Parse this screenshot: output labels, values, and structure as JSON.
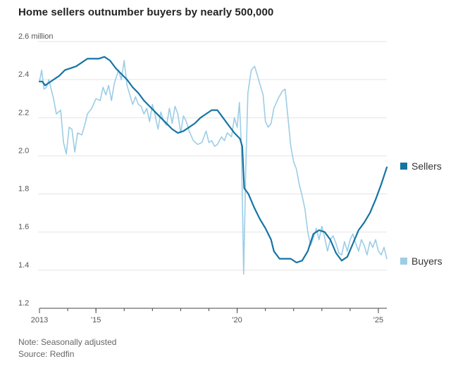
{
  "title": "Home sellers outnumber buyers by nearly 500,000",
  "note": "Note: Seasonally adjusted",
  "source": "Source: Redfin",
  "colors": {
    "sellers": "#1574a3",
    "buyers": "#9ccde6",
    "grid": "#e3e3e3",
    "axis": "#444444"
  },
  "chart_data": {
    "type": "line",
    "title": "Home sellers outnumber buyers by nearly 500,000",
    "ylabel": "million",
    "ylim": [
      1.2,
      2.6
    ],
    "xlim": [
      2013.0,
      2025.3
    ],
    "y_ticks": [
      {
        "value": 2.6,
        "label": "2.6 million"
      },
      {
        "value": 2.4,
        "label": "2.4"
      },
      {
        "value": 2.2,
        "label": "2.2"
      },
      {
        "value": 2.0,
        "label": "2.0"
      },
      {
        "value": 1.8,
        "label": "1.8"
      },
      {
        "value": 1.6,
        "label": "1.6"
      },
      {
        "value": 1.4,
        "label": "1.4"
      },
      {
        "value": 1.2,
        "label": "1.2"
      }
    ],
    "x_ticks": [
      {
        "value": 2013,
        "label": "2013"
      },
      {
        "value": 2015,
        "label": "'15"
      },
      {
        "value": 2020,
        "label": "'20"
      },
      {
        "value": 2025,
        "label": "'25"
      }
    ],
    "series": [
      {
        "name": "Sellers",
        "points": [
          [
            2013.0,
            2.39
          ],
          [
            2013.1,
            2.39
          ],
          [
            2013.2,
            2.37
          ],
          [
            2013.3,
            2.38
          ],
          [
            2013.5,
            2.4
          ],
          [
            2013.7,
            2.42
          ],
          [
            2013.9,
            2.45
          ],
          [
            2014.1,
            2.46
          ],
          [
            2014.3,
            2.47
          ],
          [
            2014.5,
            2.49
          ],
          [
            2014.7,
            2.51
          ],
          [
            2014.9,
            2.51
          ],
          [
            2015.1,
            2.51
          ],
          [
            2015.3,
            2.52
          ],
          [
            2015.5,
            2.5
          ],
          [
            2015.7,
            2.46
          ],
          [
            2015.9,
            2.43
          ],
          [
            2016.1,
            2.4
          ],
          [
            2016.3,
            2.36
          ],
          [
            2016.5,
            2.33
          ],
          [
            2016.7,
            2.29
          ],
          [
            2016.9,
            2.26
          ],
          [
            2017.1,
            2.23
          ],
          [
            2017.3,
            2.2
          ],
          [
            2017.5,
            2.17
          ],
          [
            2017.7,
            2.14
          ],
          [
            2017.9,
            2.12
          ],
          [
            2018.1,
            2.13
          ],
          [
            2018.3,
            2.15
          ],
          [
            2018.5,
            2.17
          ],
          [
            2018.7,
            2.2
          ],
          [
            2018.9,
            2.22
          ],
          [
            2019.1,
            2.24
          ],
          [
            2019.3,
            2.24
          ],
          [
            2019.5,
            2.2
          ],
          [
            2019.7,
            2.16
          ],
          [
            2019.9,
            2.12
          ],
          [
            2020.1,
            2.09
          ],
          [
            2020.18,
            2.05
          ],
          [
            2020.25,
            1.83
          ],
          [
            2020.4,
            1.8
          ],
          [
            2020.6,
            1.73
          ],
          [
            2020.8,
            1.67
          ],
          [
            2021.0,
            1.62
          ],
          [
            2021.2,
            1.56
          ],
          [
            2021.3,
            1.5
          ],
          [
            2021.5,
            1.46
          ],
          [
            2021.7,
            1.46
          ],
          [
            2021.9,
            1.46
          ],
          [
            2022.1,
            1.44
          ],
          [
            2022.3,
            1.45
          ],
          [
            2022.5,
            1.5
          ],
          [
            2022.7,
            1.59
          ],
          [
            2022.9,
            1.61
          ],
          [
            2023.1,
            1.6
          ],
          [
            2023.3,
            1.56
          ],
          [
            2023.5,
            1.49
          ],
          [
            2023.7,
            1.45
          ],
          [
            2023.9,
            1.47
          ],
          [
            2024.1,
            1.54
          ],
          [
            2024.3,
            1.61
          ],
          [
            2024.5,
            1.65
          ],
          [
            2024.7,
            1.7
          ],
          [
            2024.9,
            1.77
          ],
          [
            2025.1,
            1.85
          ],
          [
            2025.3,
            1.94
          ]
        ]
      },
      {
        "name": "Buyers",
        "points": [
          [
            2013.0,
            2.39
          ],
          [
            2013.08,
            2.45
          ],
          [
            2013.16,
            2.35
          ],
          [
            2013.25,
            2.36
          ],
          [
            2013.33,
            2.4
          ],
          [
            2013.5,
            2.3
          ],
          [
            2013.6,
            2.22
          ],
          [
            2013.75,
            2.24
          ],
          [
            2013.85,
            2.07
          ],
          [
            2013.95,
            2.01
          ],
          [
            2014.05,
            2.15
          ],
          [
            2014.15,
            2.14
          ],
          [
            2014.25,
            2.02
          ],
          [
            2014.35,
            2.12
          ],
          [
            2014.5,
            2.11
          ],
          [
            2014.6,
            2.16
          ],
          [
            2014.7,
            2.22
          ],
          [
            2014.85,
            2.25
          ],
          [
            2015.0,
            2.3
          ],
          [
            2015.15,
            2.29
          ],
          [
            2015.25,
            2.36
          ],
          [
            2015.35,
            2.32
          ],
          [
            2015.45,
            2.37
          ],
          [
            2015.55,
            2.29
          ],
          [
            2015.65,
            2.38
          ],
          [
            2015.8,
            2.45
          ],
          [
            2015.9,
            2.4
          ],
          [
            2016.0,
            2.5
          ],
          [
            2016.1,
            2.37
          ],
          [
            2016.2,
            2.32
          ],
          [
            2016.3,
            2.27
          ],
          [
            2016.4,
            2.31
          ],
          [
            2016.5,
            2.27
          ],
          [
            2016.6,
            2.26
          ],
          [
            2016.7,
            2.22
          ],
          [
            2016.8,
            2.25
          ],
          [
            2016.9,
            2.18
          ],
          [
            2017.0,
            2.27
          ],
          [
            2017.1,
            2.21
          ],
          [
            2017.2,
            2.14
          ],
          [
            2017.3,
            2.23
          ],
          [
            2017.4,
            2.18
          ],
          [
            2017.5,
            2.16
          ],
          [
            2017.6,
            2.25
          ],
          [
            2017.7,
            2.17
          ],
          [
            2017.8,
            2.26
          ],
          [
            2017.9,
            2.22
          ],
          [
            2018.0,
            2.12
          ],
          [
            2018.1,
            2.21
          ],
          [
            2018.2,
            2.18
          ],
          [
            2018.3,
            2.13
          ],
          [
            2018.45,
            2.08
          ],
          [
            2018.6,
            2.06
          ],
          [
            2018.75,
            2.07
          ],
          [
            2018.9,
            2.13
          ],
          [
            2019.0,
            2.07
          ],
          [
            2019.1,
            2.08
          ],
          [
            2019.2,
            2.05
          ],
          [
            2019.3,
            2.06
          ],
          [
            2019.45,
            2.1
          ],
          [
            2019.55,
            2.08
          ],
          [
            2019.65,
            2.12
          ],
          [
            2019.8,
            2.1
          ],
          [
            2019.9,
            2.2
          ],
          [
            2020.0,
            2.15
          ],
          [
            2020.08,
            2.28
          ],
          [
            2020.15,
            2.05
          ],
          [
            2020.23,
            1.38
          ],
          [
            2020.3,
            1.9
          ],
          [
            2020.38,
            2.33
          ],
          [
            2020.5,
            2.45
          ],
          [
            2020.62,
            2.47
          ],
          [
            2020.72,
            2.42
          ],
          [
            2020.8,
            2.38
          ],
          [
            2020.92,
            2.32
          ],
          [
            2021.0,
            2.18
          ],
          [
            2021.1,
            2.15
          ],
          [
            2021.2,
            2.17
          ],
          [
            2021.3,
            2.25
          ],
          [
            2021.45,
            2.3
          ],
          [
            2021.6,
            2.34
          ],
          [
            2021.7,
            2.35
          ],
          [
            2021.8,
            2.2
          ],
          [
            2021.9,
            2.05
          ],
          [
            2022.0,
            1.97
          ],
          [
            2022.1,
            1.93
          ],
          [
            2022.2,
            1.85
          ],
          [
            2022.3,
            1.79
          ],
          [
            2022.4,
            1.72
          ],
          [
            2022.5,
            1.6
          ],
          [
            2022.6,
            1.53
          ],
          [
            2022.7,
            1.57
          ],
          [
            2022.8,
            1.62
          ],
          [
            2022.9,
            1.56
          ],
          [
            2023.0,
            1.63
          ],
          [
            2023.1,
            1.57
          ],
          [
            2023.2,
            1.5
          ],
          [
            2023.3,
            1.56
          ],
          [
            2023.4,
            1.58
          ],
          [
            2023.5,
            1.54
          ],
          [
            2023.6,
            1.49
          ],
          [
            2023.7,
            1.48
          ],
          [
            2023.8,
            1.55
          ],
          [
            2023.9,
            1.5
          ],
          [
            2024.0,
            1.56
          ],
          [
            2024.1,
            1.59
          ],
          [
            2024.2,
            1.54
          ],
          [
            2024.3,
            1.5
          ],
          [
            2024.4,
            1.56
          ],
          [
            2024.5,
            1.53
          ],
          [
            2024.6,
            1.48
          ],
          [
            2024.7,
            1.55
          ],
          [
            2024.8,
            1.52
          ],
          [
            2024.9,
            1.56
          ],
          [
            2025.0,
            1.5
          ],
          [
            2025.1,
            1.48
          ],
          [
            2025.2,
            1.52
          ],
          [
            2025.3,
            1.46
          ]
        ]
      }
    ]
  }
}
